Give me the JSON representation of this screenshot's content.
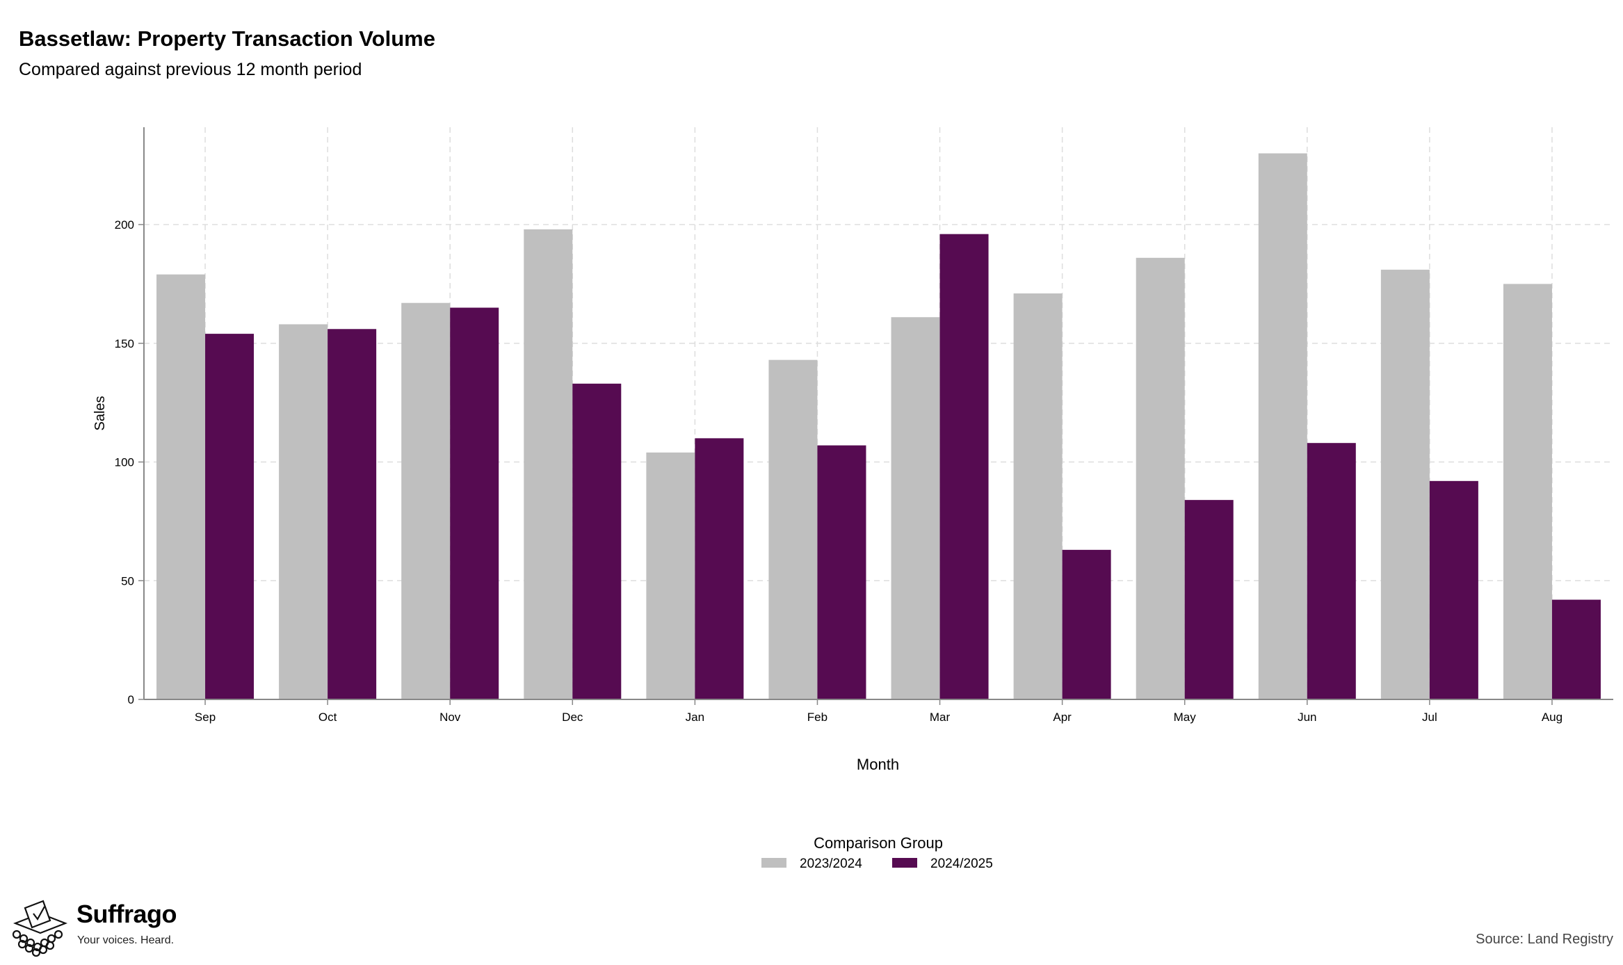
{
  "chart_data": {
    "type": "bar",
    "title": "Bassetlaw: Property Transaction Volume",
    "subtitle": "Compared against previous 12 month period",
    "xlabel": "Month",
    "ylabel": "Sales",
    "categories": [
      "Sep",
      "Oct",
      "Nov",
      "Dec",
      "Jan",
      "Feb",
      "Mar",
      "Apr",
      "May",
      "Jun",
      "Jul",
      "Aug"
    ],
    "series": [
      {
        "name": "2023/2024",
        "color": "#bfbfbf",
        "values": [
          179,
          158,
          167,
          198,
          104,
          143,
          161,
          171,
          186,
          230,
          181,
          175
        ]
      },
      {
        "name": "2024/2025",
        "color": "#560b51",
        "values": [
          154,
          156,
          165,
          133,
          110,
          107,
          196,
          63,
          84,
          108,
          92,
          42
        ]
      }
    ],
    "ylim": [
      0,
      241
    ],
    "yticks": [
      0,
      50,
      100,
      150,
      200
    ],
    "grid": true,
    "legend_title": "Comparison Group",
    "legend_position": "bottom"
  },
  "brand": {
    "name": "Suffrago",
    "tagline": "Your voices. Heard."
  },
  "source": "Source: Land Registry"
}
